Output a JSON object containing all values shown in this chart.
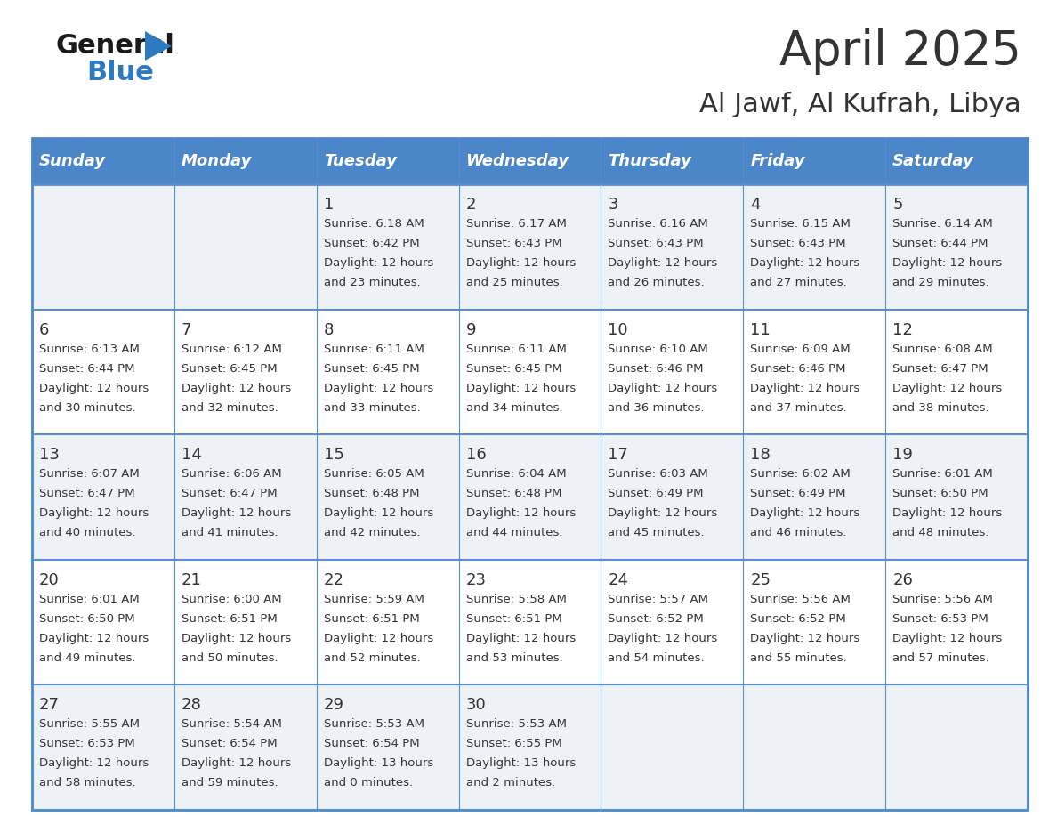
{
  "title": "April 2025",
  "subtitle": "Al Jawf, Al Kufrah, Libya",
  "header_bg": "#3a7bbf",
  "header_text": "#ffffff",
  "row_bg_odd": "#eef2f7",
  "row_bg_even": "#ffffff",
  "day_headers": [
    "Sunday",
    "Monday",
    "Tuesday",
    "Wednesday",
    "Thursday",
    "Friday",
    "Saturday"
  ],
  "weeks": [
    [
      {
        "day": "",
        "sunrise": "",
        "sunset": "",
        "daylight": ""
      },
      {
        "day": "",
        "sunrise": "",
        "sunset": "",
        "daylight": ""
      },
      {
        "day": "1",
        "sunrise": "Sunrise: 6:18 AM",
        "sunset": "Sunset: 6:42 PM",
        "daylight": "Daylight: 12 hours\nand 23 minutes."
      },
      {
        "day": "2",
        "sunrise": "Sunrise: 6:17 AM",
        "sunset": "Sunset: 6:43 PM",
        "daylight": "Daylight: 12 hours\nand 25 minutes."
      },
      {
        "day": "3",
        "sunrise": "Sunrise: 6:16 AM",
        "sunset": "Sunset: 6:43 PM",
        "daylight": "Daylight: 12 hours\nand 26 minutes."
      },
      {
        "day": "4",
        "sunrise": "Sunrise: 6:15 AM",
        "sunset": "Sunset: 6:43 PM",
        "daylight": "Daylight: 12 hours\nand 27 minutes."
      },
      {
        "day": "5",
        "sunrise": "Sunrise: 6:14 AM",
        "sunset": "Sunset: 6:44 PM",
        "daylight": "Daylight: 12 hours\nand 29 minutes."
      }
    ],
    [
      {
        "day": "6",
        "sunrise": "Sunrise: 6:13 AM",
        "sunset": "Sunset: 6:44 PM",
        "daylight": "Daylight: 12 hours\nand 30 minutes."
      },
      {
        "day": "7",
        "sunrise": "Sunrise: 6:12 AM",
        "sunset": "Sunset: 6:45 PM",
        "daylight": "Daylight: 12 hours\nand 32 minutes."
      },
      {
        "day": "8",
        "sunrise": "Sunrise: 6:11 AM",
        "sunset": "Sunset: 6:45 PM",
        "daylight": "Daylight: 12 hours\nand 33 minutes."
      },
      {
        "day": "9",
        "sunrise": "Sunrise: 6:11 AM",
        "sunset": "Sunset: 6:45 PM",
        "daylight": "Daylight: 12 hours\nand 34 minutes."
      },
      {
        "day": "10",
        "sunrise": "Sunrise: 6:10 AM",
        "sunset": "Sunset: 6:46 PM",
        "daylight": "Daylight: 12 hours\nand 36 minutes."
      },
      {
        "day": "11",
        "sunrise": "Sunrise: 6:09 AM",
        "sunset": "Sunset: 6:46 PM",
        "daylight": "Daylight: 12 hours\nand 37 minutes."
      },
      {
        "day": "12",
        "sunrise": "Sunrise: 6:08 AM",
        "sunset": "Sunset: 6:47 PM",
        "daylight": "Daylight: 12 hours\nand 38 minutes."
      }
    ],
    [
      {
        "day": "13",
        "sunrise": "Sunrise: 6:07 AM",
        "sunset": "Sunset: 6:47 PM",
        "daylight": "Daylight: 12 hours\nand 40 minutes."
      },
      {
        "day": "14",
        "sunrise": "Sunrise: 6:06 AM",
        "sunset": "Sunset: 6:47 PM",
        "daylight": "Daylight: 12 hours\nand 41 minutes."
      },
      {
        "day": "15",
        "sunrise": "Sunrise: 6:05 AM",
        "sunset": "Sunset: 6:48 PM",
        "daylight": "Daylight: 12 hours\nand 42 minutes."
      },
      {
        "day": "16",
        "sunrise": "Sunrise: 6:04 AM",
        "sunset": "Sunset: 6:48 PM",
        "daylight": "Daylight: 12 hours\nand 44 minutes."
      },
      {
        "day": "17",
        "sunrise": "Sunrise: 6:03 AM",
        "sunset": "Sunset: 6:49 PM",
        "daylight": "Daylight: 12 hours\nand 45 minutes."
      },
      {
        "day": "18",
        "sunrise": "Sunrise: 6:02 AM",
        "sunset": "Sunset: 6:49 PM",
        "daylight": "Daylight: 12 hours\nand 46 minutes."
      },
      {
        "day": "19",
        "sunrise": "Sunrise: 6:01 AM",
        "sunset": "Sunset: 6:50 PM",
        "daylight": "Daylight: 12 hours\nand 48 minutes."
      }
    ],
    [
      {
        "day": "20",
        "sunrise": "Sunrise: 6:01 AM",
        "sunset": "Sunset: 6:50 PM",
        "daylight": "Daylight: 12 hours\nand 49 minutes."
      },
      {
        "day": "21",
        "sunrise": "Sunrise: 6:00 AM",
        "sunset": "Sunset: 6:51 PM",
        "daylight": "Daylight: 12 hours\nand 50 minutes."
      },
      {
        "day": "22",
        "sunrise": "Sunrise: 5:59 AM",
        "sunset": "Sunset: 6:51 PM",
        "daylight": "Daylight: 12 hours\nand 52 minutes."
      },
      {
        "day": "23",
        "sunrise": "Sunrise: 5:58 AM",
        "sunset": "Sunset: 6:51 PM",
        "daylight": "Daylight: 12 hours\nand 53 minutes."
      },
      {
        "day": "24",
        "sunrise": "Sunrise: 5:57 AM",
        "sunset": "Sunset: 6:52 PM",
        "daylight": "Daylight: 12 hours\nand 54 minutes."
      },
      {
        "day": "25",
        "sunrise": "Sunrise: 5:56 AM",
        "sunset": "Sunset: 6:52 PM",
        "daylight": "Daylight: 12 hours\nand 55 minutes."
      },
      {
        "day": "26",
        "sunrise": "Sunrise: 5:56 AM",
        "sunset": "Sunset: 6:53 PM",
        "daylight": "Daylight: 12 hours\nand 57 minutes."
      }
    ],
    [
      {
        "day": "27",
        "sunrise": "Sunrise: 5:55 AM",
        "sunset": "Sunset: 6:53 PM",
        "daylight": "Daylight: 12 hours\nand 58 minutes."
      },
      {
        "day": "28",
        "sunrise": "Sunrise: 5:54 AM",
        "sunset": "Sunset: 6:54 PM",
        "daylight": "Daylight: 12 hours\nand 59 minutes."
      },
      {
        "day": "29",
        "sunrise": "Sunrise: 5:53 AM",
        "sunset": "Sunset: 6:54 PM",
        "daylight": "Daylight: 13 hours\nand 0 minutes."
      },
      {
        "day": "30",
        "sunrise": "Sunrise: 5:53 AM",
        "sunset": "Sunset: 6:55 PM",
        "daylight": "Daylight: 13 hours\nand 2 minutes."
      },
      {
        "day": "",
        "sunrise": "",
        "sunset": "",
        "daylight": ""
      },
      {
        "day": "",
        "sunrise": "",
        "sunset": "",
        "daylight": ""
      },
      {
        "day": "",
        "sunrise": "",
        "sunset": "",
        "daylight": ""
      }
    ]
  ],
  "title_fontsize": 38,
  "subtitle_fontsize": 22,
  "header_fontsize": 13,
  "day_num_fontsize": 13,
  "cell_text_fontsize": 9.5,
  "border_color": "#4a86c8",
  "divider_color": "#5590cc",
  "text_color": "#333333",
  "logo_general_color": "#1a1a1a",
  "logo_blue_color": "#2e7abf",
  "logo_triangle_color": "#2e7abf"
}
